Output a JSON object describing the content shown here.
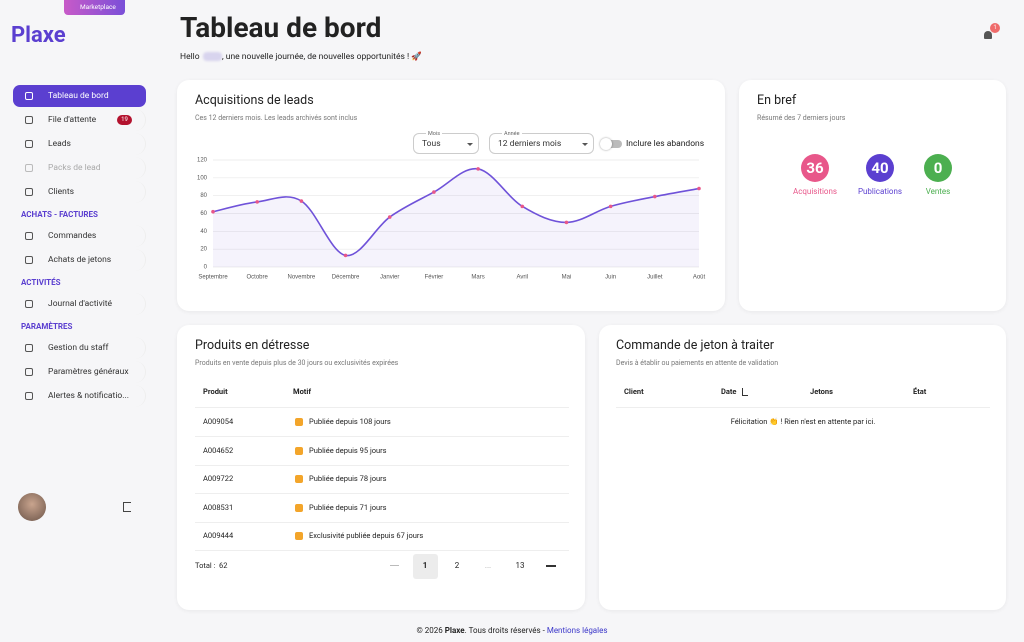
{
  "brand": {
    "logo": "Plaxe",
    "marketplace": "Marketplace"
  },
  "sidebar": {
    "items": [
      {
        "label": "Tableau de bord",
        "active": true
      },
      {
        "label": "File d'attente",
        "badge": 19
      },
      {
        "label": "Leads"
      },
      {
        "label": "Packs de lead",
        "disabled": true
      },
      {
        "label": "Clients"
      }
    ],
    "sections": [
      {
        "title": "ACHATS - FACTURES",
        "items": [
          {
            "label": "Commandes"
          },
          {
            "label": "Achats de jetons"
          }
        ]
      },
      {
        "title": "ACTIVITÉS",
        "items": [
          {
            "label": "Journal d'activité"
          }
        ]
      },
      {
        "title": "PARAMÈTRES",
        "items": [
          {
            "label": "Gestion du staff"
          },
          {
            "label": "Paramètres généraux"
          },
          {
            "label": "Alertes & notificatio..."
          }
        ]
      }
    ]
  },
  "header": {
    "title": "Tableau de bord",
    "greeting_start": "Hello",
    "greeting_end": ", une nouvelle journée, de nouvelles opportunités ! 🚀",
    "notifications": 1
  },
  "leads": {
    "title": "Acquisitions de leads",
    "subtitle": "Ces 12 derniers mois. Les leads archivés sont inclus",
    "month": {
      "label": "Mois",
      "value": "Tous"
    },
    "year": {
      "label": "Année",
      "value": "12 derniers mois"
    },
    "toggle": "Inclure les abandons"
  },
  "chart_data": {
    "type": "line",
    "categories": [
      "Septembre",
      "Octobre",
      "Novembre",
      "Décembre",
      "Janvier",
      "Février",
      "Mars",
      "Avril",
      "Mai",
      "Juin",
      "Juillet",
      "Août"
    ],
    "values": [
      62,
      73,
      74,
      13,
      56,
      84,
      110,
      68,
      50,
      68,
      79,
      88
    ],
    "color": "#6f52d9",
    "point_color": "#e8578a",
    "ylim": [
      0,
      120
    ],
    "yticks": [
      0,
      20,
      40,
      60,
      80,
      100,
      120
    ],
    "grid": true
  },
  "summary": {
    "title": "En bref",
    "subtitle": "Résumé des 7 derniers jours",
    "stats": [
      {
        "value": 36,
        "label": "Acquisitions",
        "color": "#e8578a"
      },
      {
        "value": 40,
        "label": "Publications",
        "color": "#5b3fd0"
      },
      {
        "value": 0,
        "label": "Ventes",
        "color": "#4caf50"
      }
    ]
  },
  "products": {
    "title": "Produits en détresse",
    "subtitle": "Produits en vente depuis plus de 30 jours ou exclusivités expirées",
    "columns": [
      "Produit",
      "Motif"
    ],
    "rows": [
      [
        "A009054",
        "Publiée depuis 108 jours"
      ],
      [
        "A004652",
        "Publiée depuis 95 jours"
      ],
      [
        "A009722",
        "Publiée depuis 78 jours"
      ],
      [
        "A008531",
        "Publiée depuis 71 jours"
      ],
      [
        "A009444",
        "Exclusivité publiée depuis 67 jours"
      ]
    ],
    "total_label": "Total :",
    "total": 62,
    "pagination": {
      "pages": [
        1,
        2
      ],
      "ellipsis": "...",
      "last": 13,
      "current": 1
    }
  },
  "orders": {
    "title": "Commande de jeton à traiter",
    "subtitle": "Devis à établir ou paiements en attente de validation",
    "columns": [
      "Client",
      "Date",
      "Jetons",
      "État"
    ],
    "empty": "Félicitation 👏 ! Rien n'est en attente par ici."
  },
  "footer": {
    "copyright": "© 2026",
    "brand": "Plaxe",
    "rights": ". Tous droits réservés -",
    "link": "Mentions légales"
  }
}
